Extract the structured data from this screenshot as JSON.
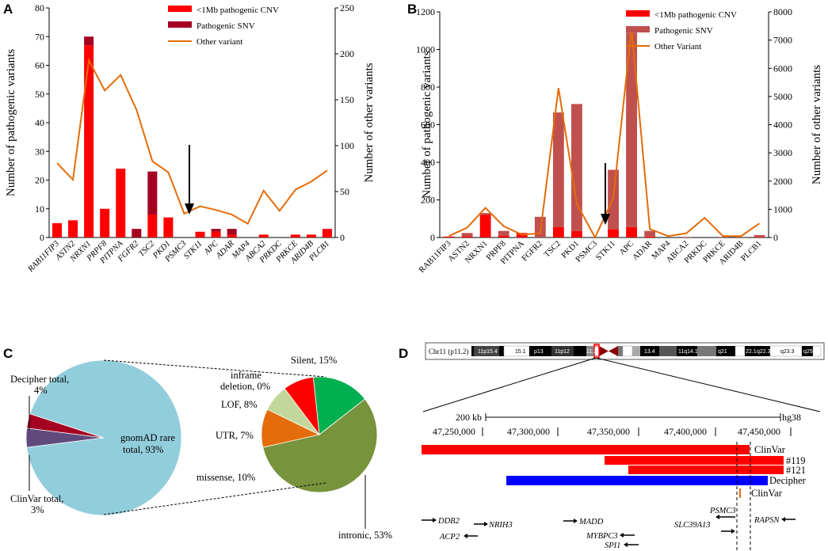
{
  "chart_data": [
    {
      "panel": "A",
      "type": "bar",
      "stacked": true,
      "categories": [
        "RAB11FIP3",
        "ASTN2",
        "NRXN1",
        "PRPF8",
        "PITPNA",
        "FGFR2",
        "TSC2",
        "PKD1",
        "PSMC3",
        "STK11",
        "APC",
        "ADAR",
        "MAP4",
        "ABCA2",
        "PRKDC",
        "PRKCE",
        "ARID4B",
        "PLCB1"
      ],
      "series": [
        {
          "name": "<1Mb pathogenic CNV",
          "axis": "left",
          "color": "#ff0000",
          "values": [
            5,
            6,
            67,
            10,
            24,
            0,
            8,
            7,
            0,
            2,
            2,
            1,
            0,
            1,
            0,
            1,
            1,
            3
          ]
        },
        {
          "name": "Pathogenic SNV",
          "axis": "left",
          "color": "#a50021",
          "values": [
            0,
            0,
            3,
            0,
            0,
            3,
            15,
            0,
            0,
            0,
            1,
            2,
            0,
            0,
            0,
            0,
            0,
            0
          ]
        },
        {
          "name": "Other variant",
          "axis": "right",
          "type": "line",
          "color": "#e46c0a",
          "values": [
            81,
            63,
            193,
            160,
            177,
            139,
            83,
            71,
            26,
            34,
            30,
            25,
            15,
            51,
            29,
            52,
            61,
            73
          ]
        }
      ],
      "ylabel": "Number of pathogenic variants",
      "y2label": "Number of other variants",
      "ylim": [
        0,
        80
      ],
      "yticks": [
        0,
        10,
        20,
        30,
        40,
        50,
        60,
        70,
        80
      ],
      "y2lim": [
        0,
        250
      ],
      "y2ticks": [
        0,
        50,
        100,
        150,
        200,
        250
      ],
      "annotation": "arrow pointing to PSMC3"
    },
    {
      "panel": "B",
      "type": "bar",
      "stacked": true,
      "categories": [
        "RAB11FIP3",
        "ASTN2",
        "NRXN1",
        "PRPF8",
        "PITPNA",
        "FGFR2",
        "TSC2",
        "PKD1",
        "PSMC3",
        "STK11",
        "APC",
        "ADAR",
        "MAP4",
        "ABCA2",
        "PRKDC",
        "PRKCE",
        "ARID4B",
        "PLCB1"
      ],
      "series": [
        {
          "name": "<1Mb pathogenic CNV",
          "axis": "left",
          "color": "#ff0000",
          "values": [
            5,
            6,
            120,
            10,
            24,
            0,
            55,
            35,
            0,
            45,
            55,
            5,
            0,
            1,
            0,
            1,
            1,
            3
          ]
        },
        {
          "name": "Pathogenic SNV",
          "axis": "left",
          "color": "#c0504d",
          "values": [
            0,
            18,
            10,
            25,
            0,
            110,
            610,
            675,
            0,
            315,
            1035,
            30,
            0,
            0,
            0,
            0,
            0,
            10
          ]
        },
        {
          "name": "Other Variant",
          "axis": "right",
          "type": "line",
          "color": "#e46c0a",
          "values": [
            50,
            350,
            1050,
            400,
            100,
            150,
            5300,
            1200,
            0,
            1400,
            7400,
            300,
            50,
            150,
            700,
            50,
            50,
            500
          ]
        }
      ],
      "ylabel": "Number of pathogenic variants",
      "y2label": "Number of other variants",
      "ylim": [
        0,
        1200
      ],
      "yticks": [
        0,
        200,
        400,
        600,
        800,
        1000,
        1200
      ],
      "y2lim": [
        0,
        8000
      ],
      "y2ticks": [
        0,
        1000,
        2000,
        3000,
        4000,
        5000,
        6000,
        7000,
        8000
      ],
      "annotation": "arrow pointing to PSMC3"
    },
    {
      "panel": "C",
      "type": "pie",
      "main_pie": [
        {
          "label": "gnomAD rare total, 93%",
          "value": 93,
          "color": "#92cddc"
        },
        {
          "label": "Decipher total, 4%",
          "value": 4,
          "color": "#604a7b"
        },
        {
          "label": "ClinVar total, 3%",
          "value": 3,
          "color": "#a50021"
        }
      ],
      "sub_pie": [
        {
          "label": "Silent, 15%",
          "value": 15,
          "color": "#00b050"
        },
        {
          "label": "inframe deletion, 0%",
          "value": 0,
          "color": "#00b050"
        },
        {
          "label": "LOF, 8%",
          "value": 8,
          "color": "#ff0000"
        },
        {
          "label": "UTR, 7%",
          "value": 7,
          "color": "#c4d79b"
        },
        {
          "label": "missense, 10%",
          "value": 10,
          "color": "#e46c0a"
        },
        {
          "label": "intronic, 53%",
          "value": 53,
          "color": "#77933c"
        }
      ]
    }
  ],
  "panels": {
    "A": {
      "letter": "A"
    },
    "B": {
      "letter": "B"
    },
    "C": {
      "letter": "C"
    },
    "D": {
      "letter": "D"
    }
  },
  "panelC": {
    "label_decipher_1": "Decipher total,",
    "label_decipher_2": "4%",
    "label_clinvar_1": "ClinVar total,",
    "label_clinvar_2": "3%",
    "label_gnomad_1": "gnomAD rare",
    "label_gnomad_2": "total, 93%",
    "label_silent": "Silent, 15%",
    "label_inframe_1": "inframe",
    "label_inframe_2": "deletion, 0%",
    "label_lof": "LOF, 8%",
    "label_utr": "UTR, 7%",
    "label_missense": "missense, 10%",
    "label_intronic": "intronic, 53%"
  },
  "panelD": {
    "chrom_label": "Chr11 (p11.2)",
    "bands": [
      "11p15.4",
      "15.1",
      "p13",
      "11p12",
      "11.2",
      "13.4",
      "11q14.1",
      "q21",
      "22.1",
      "q22.3",
      "q23.3",
      "q25"
    ],
    "scale_label": "200 kb",
    "assembly": "hg38",
    "coords": [
      "47,250,000",
      "47,300,000",
      "47,350,000",
      "47,400,000",
      "47,450,000"
    ],
    "tracks": [
      {
        "label": "ClinVar",
        "color": "#ff0000"
      },
      {
        "label": "#119",
        "color": "#ff0000"
      },
      {
        "label": "#121",
        "color": "#ff0000"
      },
      {
        "label": "Decipher",
        "color": "#0000ff"
      },
      {
        "label": "ClinVar",
        "color": "#e46c0a"
      }
    ],
    "genes": [
      "DDB2",
      "NRIH3",
      "ACP2",
      "MADD",
      "MYBPC3",
      "SPI1",
      "SLC39A13",
      "PSMC3",
      "RAPSN"
    ]
  }
}
